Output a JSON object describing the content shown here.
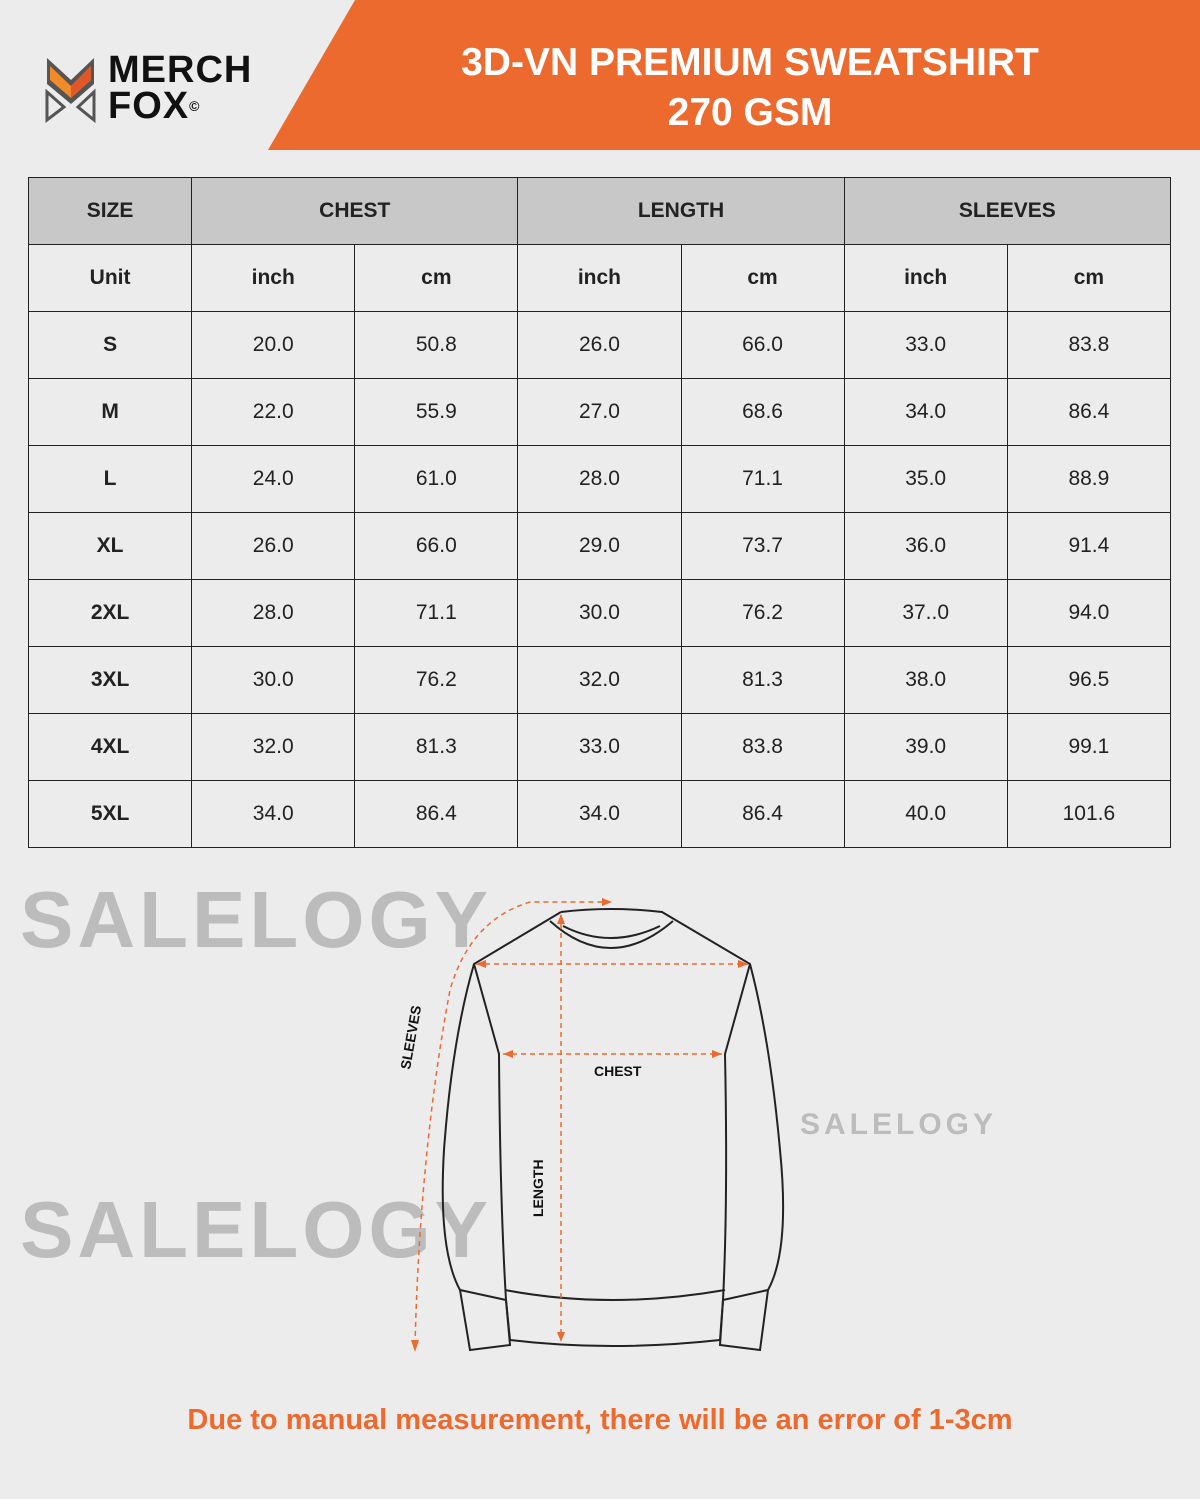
{
  "brand": {
    "line1": "MERCH",
    "line2": "FOX",
    "mark": "©"
  },
  "header": {
    "title_line1": "3D-VN PREMIUM SWEATSHIRT",
    "title_line2": "270 GSM"
  },
  "colors": {
    "accent": "#ec6a2e",
    "header_row": "#c8c8c8",
    "background": "#ececec"
  },
  "table": {
    "headers": [
      "SIZE",
      "CHEST",
      "LENGTH",
      "SLEEVES"
    ],
    "unit_row": [
      "Unit",
      "inch",
      "cm",
      "inch",
      "cm",
      "inch",
      "cm"
    ],
    "rows": [
      [
        "S",
        "20.0",
        "50.8",
        "26.0",
        "66.0",
        "33.0",
        "83.8"
      ],
      [
        "M",
        "22.0",
        "55.9",
        "27.0",
        "68.6",
        "34.0",
        "86.4"
      ],
      [
        "L",
        "24.0",
        "61.0",
        "28.0",
        "71.1",
        "35.0",
        "88.9"
      ],
      [
        "XL",
        "26.0",
        "66.0",
        "29.0",
        "73.7",
        "36.0",
        "91.4"
      ],
      [
        "2XL",
        "28.0",
        "71.1",
        "30.0",
        "76.2",
        "37..0",
        "94.0"
      ],
      [
        "3XL",
        "30.0",
        "76.2",
        "32.0",
        "81.3",
        "38.0",
        "96.5"
      ],
      [
        "4XL",
        "32.0",
        "81.3",
        "33.0",
        "83.8",
        "39.0",
        "99.1"
      ],
      [
        "5XL",
        "34.0",
        "86.4",
        "34.0",
        "86.4",
        "40.0",
        "101.6"
      ]
    ]
  },
  "diagram": {
    "sleeves": "SLEEVES",
    "chest": "CHEST",
    "length": "LENGTH"
  },
  "watermark": "SALELOGY",
  "note": "Due to manual measurement, there will be an error of 1-3cm"
}
